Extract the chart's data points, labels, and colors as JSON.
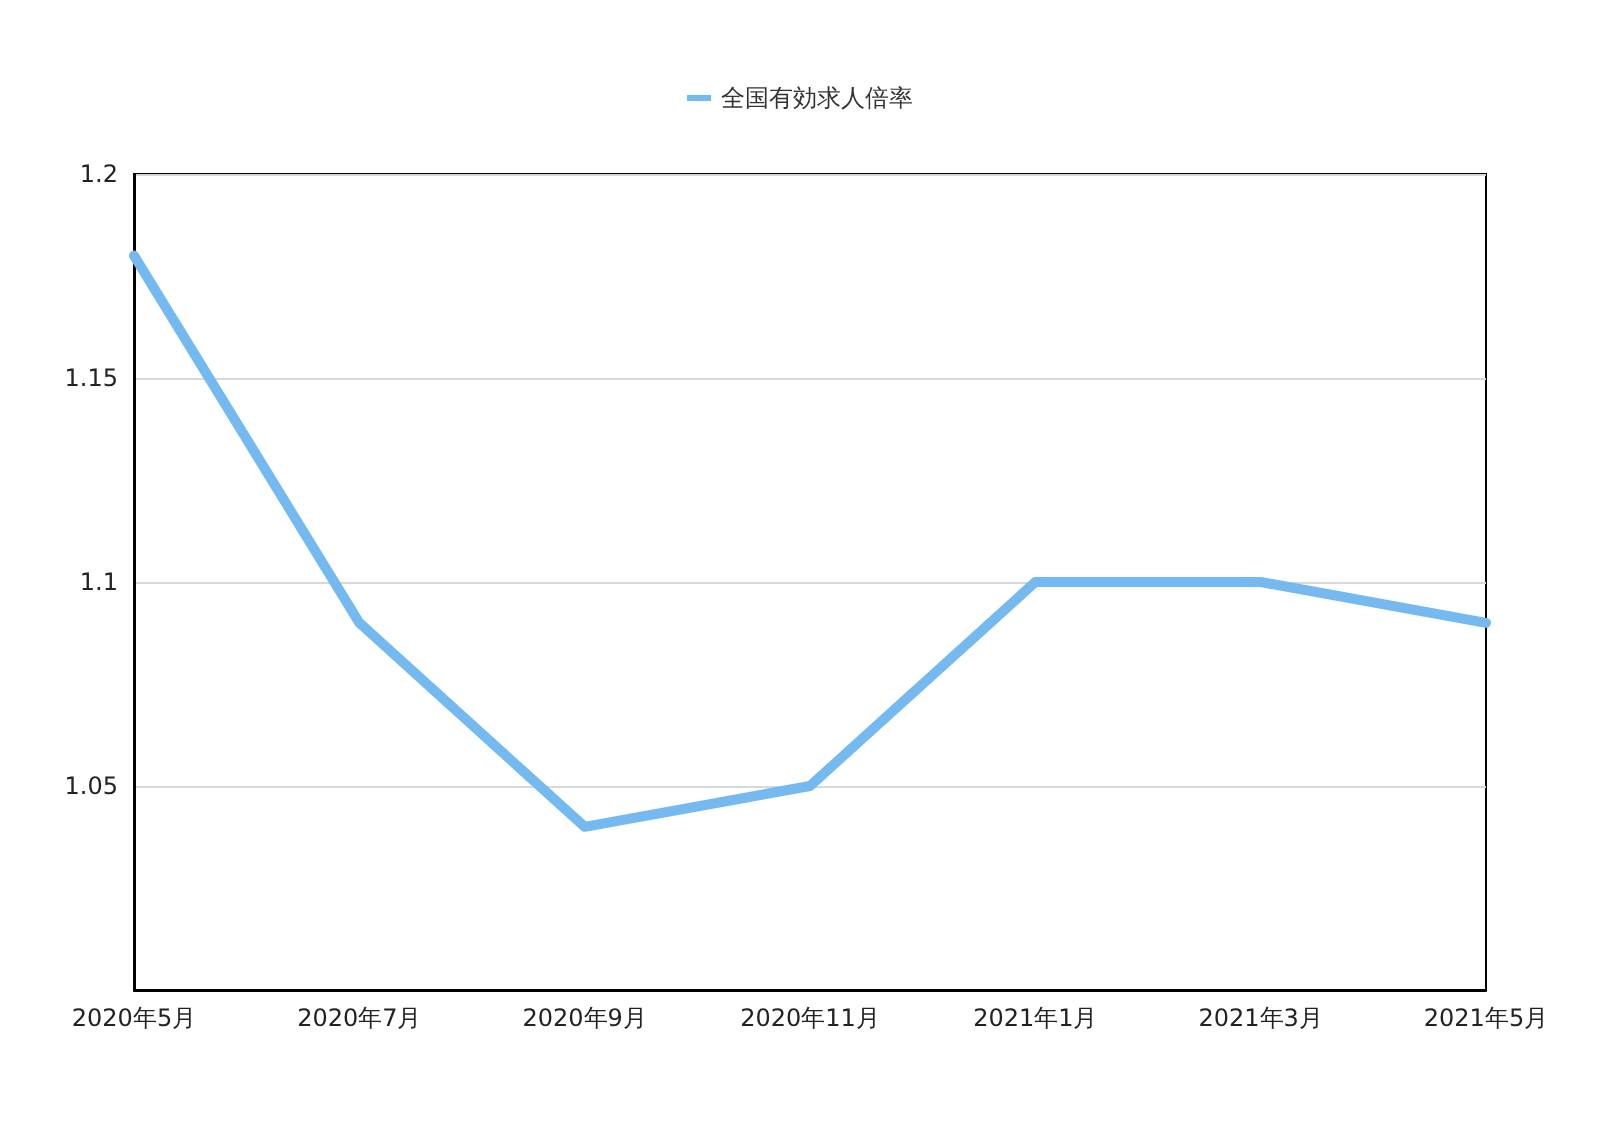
{
  "chart_data": {
    "type": "line",
    "categories": [
      "2020年5月",
      "2020年7月",
      "2020年9月",
      "2020年11月",
      "2021年1月",
      "2021年3月",
      "2021年5月"
    ],
    "series": [
      {
        "name": "全国有効求人倍率",
        "color": "#74b9ef",
        "values": [
          1.18,
          1.09,
          1.04,
          1.05,
          1.1,
          1.1,
          1.09
        ]
      }
    ],
    "ylim": [
      1.0,
      1.2
    ],
    "yticks": [
      {
        "value": 1.0,
        "label": null
      },
      1.05,
      1.1,
      1.15,
      1.2
    ],
    "grid": "y",
    "legend": "top",
    "marker": "none",
    "line_style": "solid"
  }
}
